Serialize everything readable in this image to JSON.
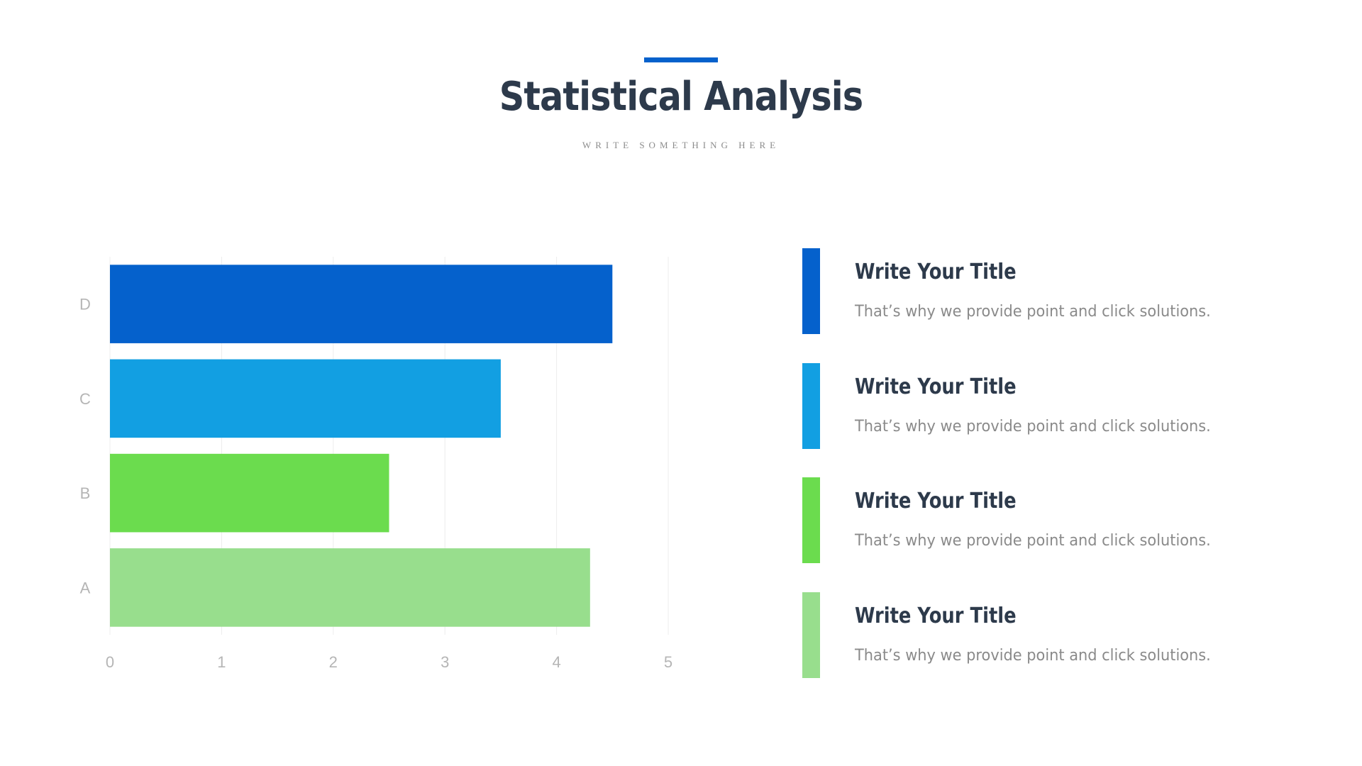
{
  "header": {
    "title": "Statistical Analysis",
    "subtitle": "WRITE SOMETHING HERE",
    "accent_color": "#0561cc"
  },
  "chart_data": {
    "type": "bar",
    "orientation": "horizontal",
    "categories": [
      "A",
      "B",
      "C",
      "D"
    ],
    "values": [
      4.3,
      2.5,
      3.5,
      4.5
    ],
    "colors": [
      "#98de8d",
      "#6bdc4e",
      "#129fe2",
      "#0561cc"
    ],
    "x_ticks": [
      "0",
      "1",
      "2",
      "3",
      "4",
      "5"
    ],
    "xlim": [
      0,
      5
    ],
    "grid": true,
    "title": "",
    "xlabel": "",
    "ylabel": ""
  },
  "legend": {
    "items": [
      {
        "title": "Write Your Title",
        "description": "That’s why we provide point and click solutions.",
        "color": "#0561cc"
      },
      {
        "title": "Write Your Title",
        "description": "That’s why we provide point and click solutions.",
        "color": "#129fe2"
      },
      {
        "title": "Write Your Title",
        "description": "That’s why we provide point and click solutions.",
        "color": "#6bdc4e"
      },
      {
        "title": "Write Your Title",
        "description": "That’s why we provide point and click solutions.",
        "color": "#98de8d"
      }
    ]
  }
}
